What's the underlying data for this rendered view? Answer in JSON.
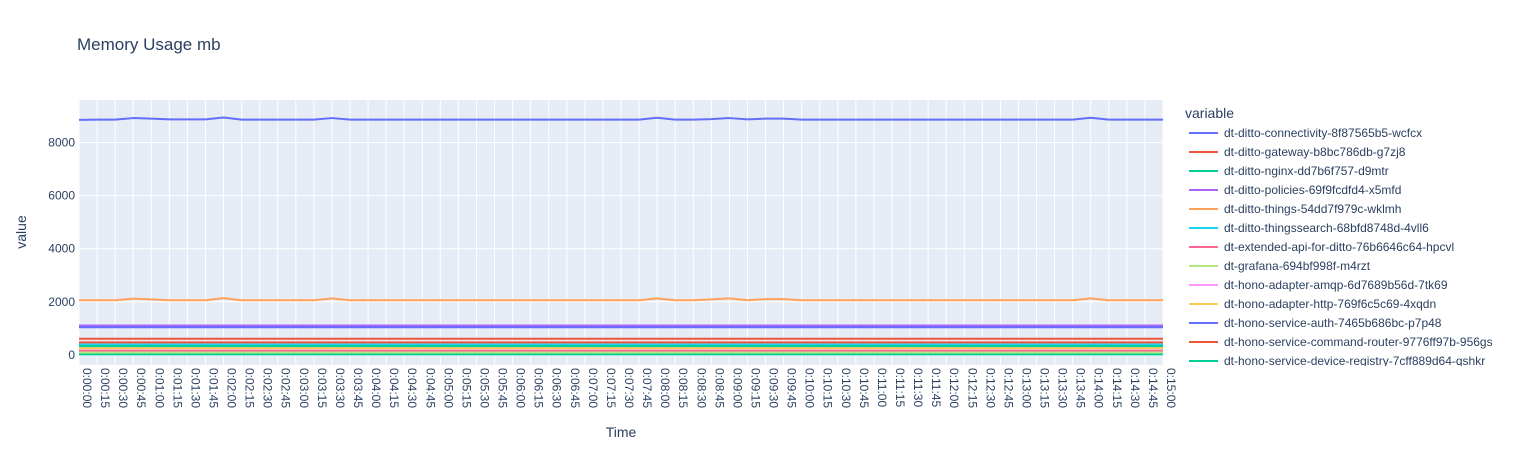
{
  "chart_data": {
    "type": "line",
    "title": "Memory Usage mb",
    "xlabel": "Time",
    "ylabel": "value",
    "ylim": [
      -380,
      9600
    ],
    "yticks": [
      0,
      2000,
      4000,
      6000,
      8000
    ],
    "grid": true,
    "legend_title": "variable",
    "legend_position": "right",
    "x": [
      "0:00:00",
      "0:00:15",
      "0:00:30",
      "0:00:45",
      "0:01:00",
      "0:01:15",
      "0:01:30",
      "0:01:45",
      "0:02:00",
      "0:02:15",
      "0:02:30",
      "0:02:45",
      "0:03:00",
      "0:03:15",
      "0:03:30",
      "0:03:45",
      "0:04:00",
      "0:04:15",
      "0:04:30",
      "0:04:45",
      "0:05:00",
      "0:05:15",
      "0:05:30",
      "0:05:45",
      "0:06:00",
      "0:06:15",
      "0:06:30",
      "0:06:45",
      "0:07:00",
      "0:07:15",
      "0:07:30",
      "0:07:45",
      "0:08:00",
      "0:08:15",
      "0:08:30",
      "0:08:45",
      "0:09:00",
      "0:09:15",
      "0:09:30",
      "0:09:45",
      "0:10:00",
      "0:10:15",
      "0:10:30",
      "0:10:45",
      "0:11:00",
      "0:11:15",
      "0:11:30",
      "0:11:45",
      "0:12:00",
      "0:12:15",
      "0:12:30",
      "0:12:45",
      "0:13:00",
      "0:13:15",
      "0:13:30",
      "0:13:45",
      "0:14:00",
      "0:14:15",
      "0:14:30",
      "0:14:45",
      "0:15:00"
    ],
    "series": [
      {
        "name": "dt-ditto-connectivity-8f87565b5-wcfcx",
        "color": "#636efa",
        "values": [
          8850,
          8860,
          8860,
          8920,
          8900,
          8870,
          8870,
          8870,
          8940,
          8860,
          8860,
          8860,
          8860,
          8860,
          8920,
          8860,
          8860,
          8860,
          8860,
          8860,
          8860,
          8860,
          8860,
          8860,
          8860,
          8860,
          8860,
          8860,
          8860,
          8860,
          8860,
          8860,
          8930,
          8860,
          8860,
          8880,
          8920,
          8870,
          8900,
          8900,
          8860,
          8860,
          8860,
          8860,
          8860,
          8860,
          8860,
          8860,
          8860,
          8860,
          8860,
          8860,
          8860,
          8860,
          8860,
          8860,
          8930,
          8860,
          8860,
          8860,
          8860
        ]
      },
      {
        "name": "dt-ditto-gateway-b8bc786db-g7zj8",
        "color": "#EF553B",
        "values": [
          610,
          610,
          610,
          610,
          610,
          610,
          610,
          610,
          610,
          610,
          610,
          610,
          610,
          610,
          610,
          610,
          610,
          610,
          610,
          610,
          610,
          610,
          610,
          610,
          610,
          610,
          610,
          610,
          610,
          610,
          610,
          610,
          610,
          610,
          610,
          610,
          610,
          610,
          610,
          610,
          610,
          610,
          610,
          610,
          610,
          610,
          610,
          610,
          610,
          610,
          610,
          610,
          610,
          610,
          610,
          610,
          610,
          610,
          610,
          610,
          610
        ]
      },
      {
        "name": "dt-ditto-nginx-dd7b6f757-d9mtr",
        "color": "#00cc96",
        "values": [
          20,
          20,
          20,
          20,
          20,
          20,
          20,
          20,
          20,
          20,
          20,
          20,
          20,
          20,
          20,
          20,
          20,
          20,
          20,
          20,
          20,
          20,
          20,
          20,
          20,
          20,
          20,
          20,
          20,
          20,
          20,
          20,
          20,
          20,
          20,
          20,
          20,
          20,
          20,
          20,
          20,
          20,
          20,
          20,
          20,
          20,
          20,
          20,
          20,
          20,
          20,
          20,
          20,
          20,
          20,
          20,
          20,
          20,
          20,
          20,
          20
        ]
      },
      {
        "name": "dt-ditto-policies-69f9fcdfd4-x5mfd",
        "color": "#ab63fa",
        "values": [
          1110,
          1110,
          1110,
          1110,
          1110,
          1110,
          1110,
          1110,
          1110,
          1110,
          1110,
          1110,
          1110,
          1110,
          1110,
          1110,
          1110,
          1110,
          1110,
          1110,
          1110,
          1110,
          1110,
          1110,
          1110,
          1110,
          1110,
          1110,
          1110,
          1110,
          1110,
          1110,
          1110,
          1110,
          1110,
          1110,
          1110,
          1110,
          1110,
          1110,
          1110,
          1110,
          1110,
          1110,
          1110,
          1110,
          1110,
          1110,
          1110,
          1110,
          1110,
          1110,
          1110,
          1110,
          1110,
          1110,
          1110,
          1110,
          1110,
          1110,
          1110
        ]
      },
      {
        "name": "dt-ditto-things-54dd7f979c-wklmh",
        "color": "#FFA15A",
        "values": [
          2060,
          2060,
          2060,
          2120,
          2090,
          2060,
          2060,
          2060,
          2140,
          2060,
          2060,
          2060,
          2060,
          2060,
          2130,
          2060,
          2060,
          2060,
          2060,
          2060,
          2060,
          2060,
          2060,
          2060,
          2060,
          2060,
          2060,
          2060,
          2060,
          2060,
          2060,
          2060,
          2130,
          2060,
          2060,
          2090,
          2130,
          2060,
          2100,
          2100,
          2060,
          2060,
          2060,
          2060,
          2060,
          2060,
          2060,
          2060,
          2060,
          2060,
          2060,
          2060,
          2060,
          2060,
          2060,
          2060,
          2130,
          2060,
          2060,
          2060,
          2060
        ]
      },
      {
        "name": "dt-ditto-thingssearch-68bfd8748d-4vll6",
        "color": "#19d3f3",
        "values": [
          390,
          390,
          390,
          390,
          390,
          390,
          390,
          390,
          390,
          390,
          390,
          390,
          390,
          390,
          390,
          390,
          390,
          390,
          390,
          390,
          390,
          390,
          390,
          390,
          390,
          390,
          390,
          390,
          390,
          390,
          390,
          390,
          390,
          390,
          390,
          390,
          390,
          390,
          390,
          390,
          390,
          390,
          390,
          390,
          390,
          390,
          390,
          390,
          390,
          390,
          390,
          390,
          390,
          390,
          390,
          390,
          390,
          390,
          390,
          390,
          390
        ]
      },
      {
        "name": "dt-extended-api-for-ditto-76b6646c64-hpcvl",
        "color": "#FF6692",
        "values": [
          150,
          150,
          150,
          150,
          150,
          150,
          150,
          150,
          150,
          150,
          150,
          150,
          150,
          150,
          150,
          150,
          150,
          150,
          150,
          150,
          150,
          150,
          150,
          150,
          150,
          150,
          150,
          150,
          150,
          150,
          150,
          150,
          150,
          150,
          150,
          150,
          150,
          150,
          150,
          150,
          150,
          150,
          150,
          150,
          150,
          150,
          150,
          150,
          150,
          150,
          150,
          150,
          150,
          150,
          150,
          150,
          150,
          150,
          150,
          150,
          150
        ]
      },
      {
        "name": "dt-grafana-694bf998f-m4rzt",
        "color": "#B6E880",
        "values": [
          90,
          90,
          90,
          90,
          90,
          90,
          90,
          90,
          90,
          90,
          90,
          90,
          90,
          90,
          90,
          90,
          90,
          90,
          90,
          90,
          90,
          90,
          90,
          90,
          90,
          90,
          90,
          90,
          90,
          90,
          90,
          90,
          90,
          90,
          90,
          90,
          90,
          90,
          90,
          90,
          90,
          90,
          90,
          90,
          90,
          90,
          90,
          90,
          90,
          90,
          90,
          90,
          90,
          90,
          90,
          90,
          90,
          90,
          90,
          90,
          90
        ]
      },
      {
        "name": "dt-hono-adapter-amqp-6d7689b56d-7tk69",
        "color": "#FF97FF",
        "values": [
          230,
          230,
          230,
          230,
          230,
          230,
          230,
          230,
          230,
          230,
          230,
          230,
          230,
          230,
          230,
          230,
          230,
          230,
          230,
          230,
          230,
          230,
          230,
          230,
          230,
          230,
          230,
          230,
          230,
          230,
          230,
          230,
          230,
          230,
          230,
          230,
          230,
          230,
          230,
          230,
          230,
          230,
          230,
          230,
          230,
          230,
          230,
          230,
          230,
          230,
          230,
          230,
          230,
          230,
          230,
          230,
          230,
          230,
          230,
          230,
          230
        ]
      },
      {
        "name": "dt-hono-adapter-http-769f6c5c69-4xqdn",
        "color": "#FECB52",
        "values": [
          250,
          250,
          250,
          250,
          250,
          250,
          250,
          250,
          250,
          250,
          250,
          250,
          250,
          250,
          250,
          250,
          250,
          250,
          250,
          250,
          250,
          250,
          250,
          250,
          250,
          250,
          250,
          250,
          250,
          250,
          250,
          250,
          250,
          250,
          250,
          250,
          250,
          250,
          250,
          250,
          250,
          250,
          250,
          250,
          250,
          250,
          250,
          250,
          250,
          250,
          250,
          250,
          250,
          250,
          250,
          250,
          250,
          250,
          250,
          250,
          250
        ]
      },
      {
        "name": "dt-hono-service-auth-7465b686bc-p7p48",
        "color": "#636efa",
        "values": [
          1040,
          1040,
          1040,
          1040,
          1040,
          1040,
          1040,
          1040,
          1040,
          1040,
          1040,
          1040,
          1040,
          1040,
          1040,
          1040,
          1040,
          1040,
          1040,
          1040,
          1040,
          1040,
          1040,
          1040,
          1040,
          1040,
          1040,
          1040,
          1040,
          1040,
          1040,
          1040,
          1040,
          1040,
          1040,
          1040,
          1040,
          1040,
          1040,
          1040,
          1040,
          1040,
          1040,
          1040,
          1040,
          1040,
          1040,
          1040,
          1040,
          1040,
          1040,
          1040,
          1040,
          1040,
          1040,
          1040,
          1040,
          1040,
          1040,
          1040,
          1040
        ]
      },
      {
        "name": "dt-hono-service-command-router-9776ff97b-956gs",
        "color": "#EF553B",
        "values": [
          470,
          470,
          470,
          470,
          470,
          470,
          470,
          470,
          470,
          470,
          470,
          470,
          470,
          470,
          470,
          470,
          470,
          470,
          470,
          470,
          470,
          470,
          470,
          470,
          470,
          470,
          470,
          470,
          470,
          470,
          470,
          470,
          470,
          470,
          470,
          470,
          470,
          470,
          470,
          470,
          470,
          470,
          470,
          470,
          470,
          470,
          470,
          470,
          470,
          470,
          470,
          470,
          470,
          470,
          470,
          470,
          470,
          470,
          470,
          470,
          470
        ]
      },
      {
        "name": "dt-hono-service-device-registry-7cff889d64-qshkr",
        "color": "#00cc96",
        "values": [
          330,
          330,
          330,
          330,
          330,
          330,
          330,
          330,
          330,
          330,
          330,
          330,
          330,
          330,
          330,
          330,
          330,
          330,
          330,
          330,
          330,
          330,
          330,
          330,
          330,
          330,
          330,
          330,
          330,
          330,
          330,
          330,
          330,
          330,
          330,
          330,
          330,
          330,
          330,
          330,
          330,
          330,
          330,
          330,
          330,
          330,
          330,
          330,
          330,
          330,
          330,
          330,
          330,
          330,
          330,
          330,
          330,
          330,
          330,
          330,
          330
        ]
      }
    ]
  }
}
